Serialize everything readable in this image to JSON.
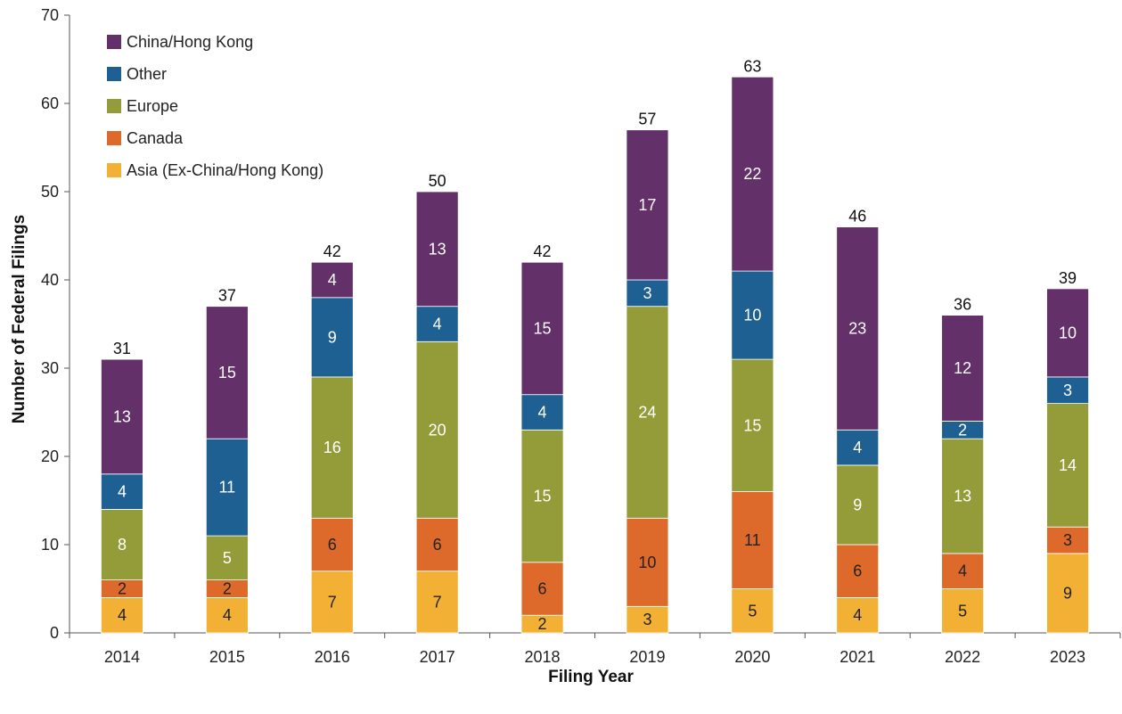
{
  "chart_data": {
    "type": "bar",
    "stacked": true,
    "title": "",
    "xlabel": "Filing Year",
    "ylabel": "Number of Federal Filings",
    "ylim": [
      0,
      70
    ],
    "yticks": [
      "0",
      "10",
      "20",
      "30",
      "40",
      "50",
      "60",
      "70"
    ],
    "grid": false,
    "legend_position": "top-left",
    "categories": [
      "2014",
      "2015",
      "2016",
      "2017",
      "2018",
      "2019",
      "2020",
      "2021",
      "2022",
      "2023"
    ],
    "totals": [
      "31",
      "37",
      "42",
      "50",
      "42",
      "57",
      "63",
      "46",
      "36",
      "39"
    ],
    "series": [
      {
        "name": "Asia (Ex-China/Hong Kong)",
        "color": "#F2B134",
        "label_color": "#222222",
        "values": [
          4,
          4,
          7,
          7,
          2,
          3,
          5,
          4,
          5,
          9
        ]
      },
      {
        "name": "Canada",
        "color": "#DD6A2A",
        "label_color": "#222222",
        "values": [
          2,
          2,
          6,
          6,
          6,
          10,
          11,
          6,
          4,
          3
        ]
      },
      {
        "name": "Europe",
        "color": "#939C38",
        "label_color": "#ffffff",
        "values": [
          8,
          5,
          16,
          20,
          15,
          24,
          15,
          9,
          13,
          14
        ]
      },
      {
        "name": "Other",
        "color": "#1E6091",
        "label_color": "#ffffff",
        "values": [
          4,
          11,
          9,
          4,
          4,
          3,
          10,
          4,
          2,
          3
        ]
      },
      {
        "name": "China/Hong Kong",
        "color": "#63306A",
        "label_color": "#ffffff",
        "values": [
          13,
          15,
          4,
          13,
          15,
          17,
          22,
          23,
          12,
          10
        ]
      }
    ],
    "legend_order": [
      "China/Hong Kong",
      "Other",
      "Europe",
      "Canada",
      "Asia (Ex-China/Hong Kong)"
    ]
  }
}
